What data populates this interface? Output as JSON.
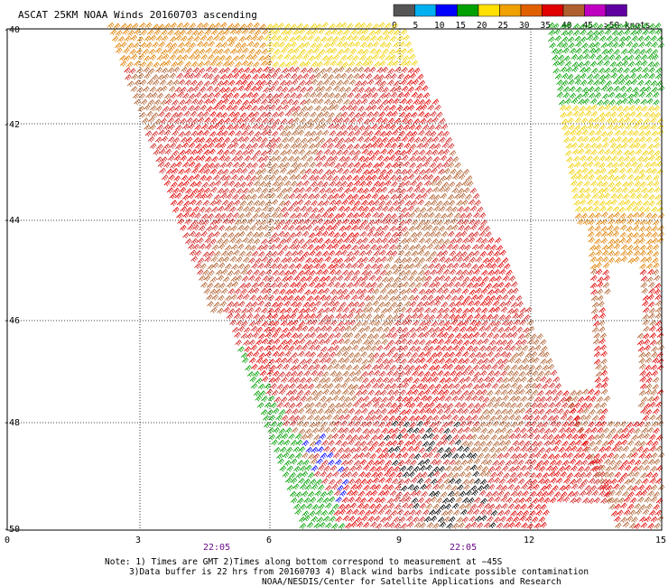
{
  "title": "ASCAT 25KM NOAA Winds 20160703 ascending",
  "legend": {
    "labels": [
      "0",
      "5",
      "10",
      "15",
      "20",
      "25",
      "30",
      "35",
      "40",
      "45",
      ">50 knots"
    ],
    "colors": [
      "#555555",
      "#00b0f0",
      "#0000ff",
      "#00a000",
      "#ffe000",
      "#f0a000",
      "#e06000",
      "#e00000",
      "#b06030",
      "#c000c0",
      "#6000a0"
    ]
  },
  "lat_labels": [
    "-40",
    "-42",
    "-44",
    "-46",
    "-48",
    "-50"
  ],
  "lon_labels": [
    "0",
    "3",
    "6",
    "9",
    "12",
    "15"
  ],
  "times": [
    "22:05",
    "22:05"
  ],
  "notes": [
    "Note: 1) Times are GMT 2)Times along bottom correspond to measurement at −45S",
    "3)Data buffer is 22 hrs from 20160703 4) Black wind barbs indicate possible contamination",
    "NOAA/NESDIS/Center for Satellite Applications and Research"
  ],
  "swath_colors": {
    "yellow": "#f0d000",
    "orange": "#e08000",
    "red": "#e00000",
    "crimson": "#d02020",
    "brown": "#b06030",
    "green": "#00a000",
    "blue": "#0000ff",
    "black": "#000000"
  }
}
